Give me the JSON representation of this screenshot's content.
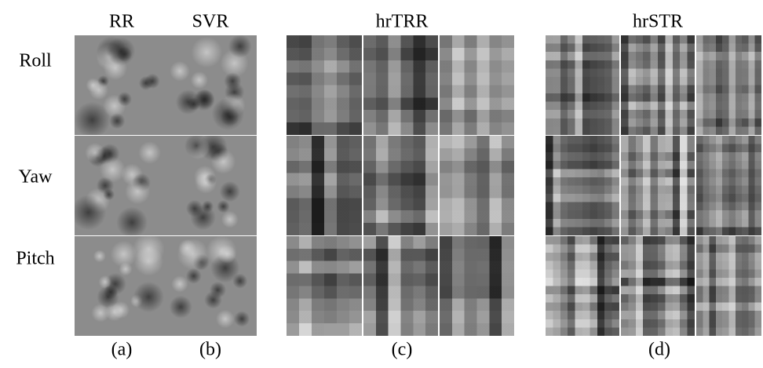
{
  "columns": [
    "RR",
    "SVR",
    "hrTRR",
    "hrSTR"
  ],
  "rows": [
    "Roll",
    "Yaw",
    "Pitch"
  ],
  "captions": [
    "(a)",
    "(b)",
    "(c)",
    "(d)"
  ]
}
